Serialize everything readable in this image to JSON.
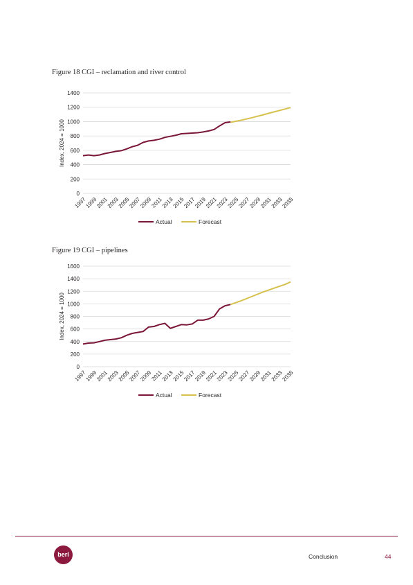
{
  "colors": {
    "actual": "#7a1637",
    "forecast": "#d6c14e",
    "grid": "#d9d9d9",
    "brand": "#8b1a3e"
  },
  "figures": [
    {
      "title": "Figure 18 CGI – reclamation and river control",
      "chart_data": {
        "type": "line",
        "ylabel": "Index, 2024 = 1000",
        "ylim": [
          0,
          1400
        ],
        "yticks": [
          0,
          200,
          400,
          600,
          800,
          1000,
          1200,
          1400
        ],
        "xticks": [
          "1997",
          "1999",
          "2001",
          "2003",
          "2005",
          "2007",
          "2009",
          "2011",
          "2013",
          "2015",
          "2017",
          "2019",
          "2021",
          "2023",
          "2025",
          "2027",
          "2029",
          "2031",
          "2033",
          "2035"
        ],
        "legend_position": "bottom",
        "grid": true,
        "series": [
          {
            "name": "Actual",
            "x": [
              1997,
              1998,
              1999,
              2000,
              2001,
              2002,
              2003,
              2004,
              2005,
              2006,
              2007,
              2008,
              2009,
              2010,
              2011,
              2012,
              2013,
              2014,
              2015,
              2016,
              2017,
              2018,
              2019,
              2020,
              2021,
              2022,
              2023,
              2024
            ],
            "y": [
              525,
              535,
              525,
              535,
              555,
              570,
              585,
              595,
              620,
              650,
              670,
              710,
              730,
              740,
              755,
              780,
              795,
              810,
              830,
              835,
              840,
              845,
              855,
              870,
              890,
              940,
              985,
              995
            ]
          },
          {
            "name": "Forecast",
            "x": [
              2024,
              2026,
              2028,
              2030,
              2032,
              2034,
              2035
            ],
            "y": [
              990,
              1020,
              1055,
              1095,
              1135,
              1175,
              1195
            ]
          }
        ]
      }
    },
    {
      "title": "Figure 19 CGI – pipelines",
      "chart_data": {
        "type": "line",
        "ylabel": "Index, 2024 = 1000",
        "ylim": [
          0,
          1600
        ],
        "yticks": [
          0,
          200,
          400,
          600,
          800,
          1000,
          1200,
          1400,
          1600
        ],
        "xticks": [
          "1997",
          "1999",
          "2001",
          "2003",
          "2005",
          "2007",
          "2009",
          "2011",
          "2013",
          "2015",
          "2017",
          "2019",
          "2021",
          "2023",
          "2025",
          "2027",
          "2029",
          "2031",
          "2033",
          "2035"
        ],
        "legend_position": "bottom",
        "grid": true,
        "series": [
          {
            "name": "Actual",
            "x": [
              1997,
              1998,
              1999,
              2000,
              2001,
              2002,
              2003,
              2004,
              2005,
              2006,
              2007,
              2008,
              2009,
              2010,
              2011,
              2012,
              2013,
              2014,
              2015,
              2016,
              2017,
              2018,
              2019,
              2020,
              2021,
              2022,
              2023,
              2024
            ],
            "y": [
              360,
              375,
              380,
              400,
              420,
              430,
              440,
              460,
              500,
              530,
              545,
              560,
              630,
              640,
              670,
              690,
              610,
              640,
              670,
              665,
              680,
              740,
              740,
              760,
              800,
              920,
              970,
              990
            ]
          },
          {
            "name": "Forecast",
            "x": [
              2024,
              2026,
              2028,
              2030,
              2032,
              2034,
              2035
            ],
            "y": [
              990,
              1050,
              1120,
              1190,
              1250,
              1310,
              1350
            ]
          }
        ]
      }
    }
  ],
  "footer": {
    "logo_text": "berl",
    "section": "Conclusion",
    "page": "44"
  }
}
